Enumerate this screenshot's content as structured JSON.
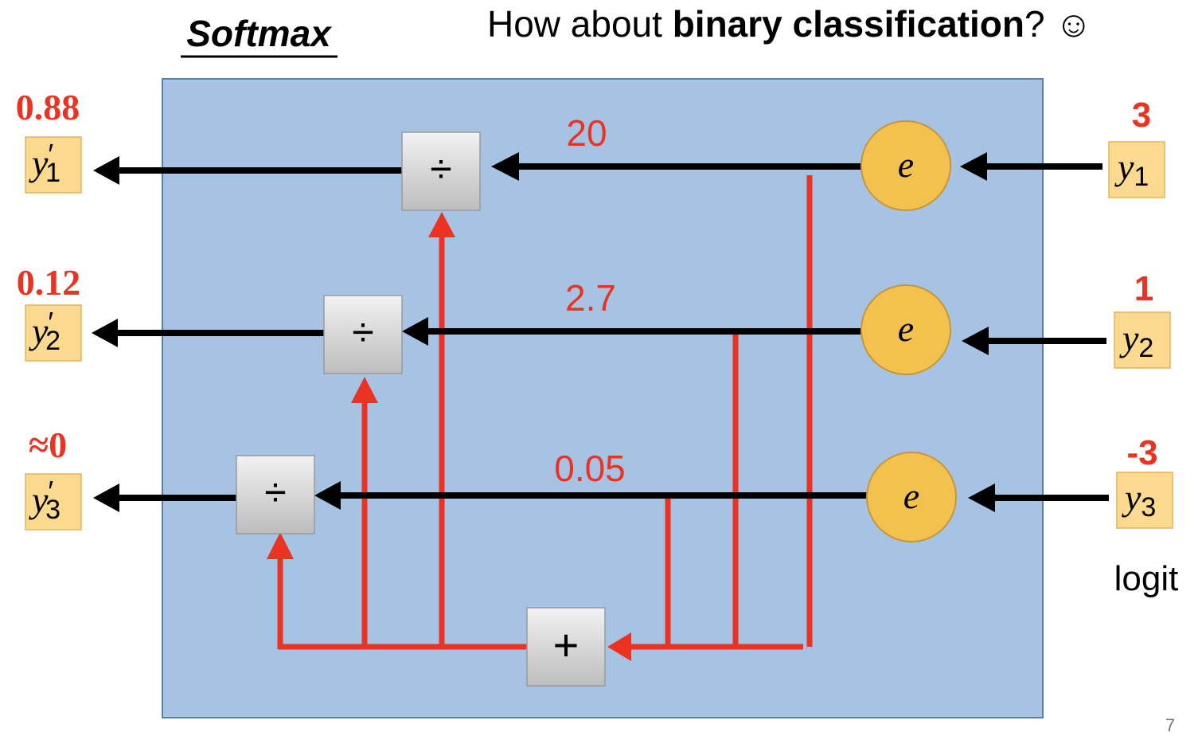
{
  "title": "Softmax",
  "subtitle": {
    "prefix": "How about ",
    "emphasis": "binary classification",
    "suffix": "? ☺"
  },
  "inputs": [
    {
      "logit_value": "3",
      "var": "y",
      "sub": "1"
    },
    {
      "logit_value": "1",
      "var": "y",
      "sub": "2"
    },
    {
      "logit_value": "-3",
      "var": "y",
      "sub": "3"
    }
  ],
  "exp_nodes": [
    {
      "symbol": "e",
      "value": "20"
    },
    {
      "symbol": "e",
      "value": "2.7"
    },
    {
      "symbol": "e",
      "value": "0.05"
    }
  ],
  "divide_symbol": "÷",
  "sum_symbol": "+",
  "outputs": [
    {
      "prob": "0.88",
      "var": "y",
      "prime": "′",
      "sub": "1"
    },
    {
      "prob": "0.12",
      "var": "y",
      "prime": "′",
      "sub": "2"
    },
    {
      "prob": "≈0",
      "var": "y",
      "prime": "′",
      "sub": "3"
    }
  ],
  "logit_label": "logit",
  "page_number": "7",
  "colors": {
    "box_fill": "#a7c3e3",
    "box_stroke": "#5a7fb2",
    "red": "#ea3323",
    "circle_fill": "#f2c14e",
    "circle_stroke": "#c8963a",
    "label_fill": "#fbd98f",
    "label_stroke": "#e6b25a",
    "op_fill_top": "#f2f2f2",
    "op_fill_bottom": "#bdbdbd"
  }
}
